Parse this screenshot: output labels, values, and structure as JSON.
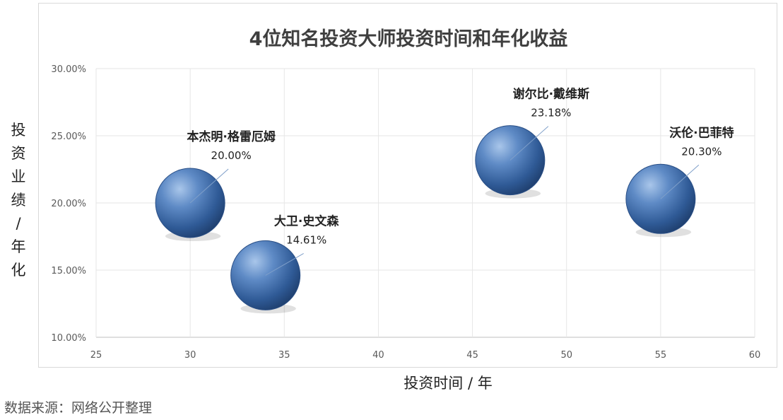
{
  "footer": {
    "source": "数据来源：网络公开整理"
  },
  "chart_data": {
    "type": "scatter",
    "title": "4位知名投资大师投资时间和年化收益",
    "xlabel": "投资时间 / 年",
    "ylabel": "投资业绩 / 年化",
    "xlim": [
      25,
      60
    ],
    "ylim": [
      10,
      30
    ],
    "x_ticks": [
      25,
      30,
      35,
      40,
      45,
      50,
      55,
      60
    ],
    "y_ticks": [
      "10.00%",
      "15.00%",
      "20.00%",
      "25.00%",
      "30.00%"
    ],
    "y_tick_values": [
      10,
      15,
      20,
      25,
      30
    ],
    "grid": true,
    "bubble_color": "#4a74b0",
    "points": [
      {
        "name": "本杰明·格雷厄姆",
        "x": 30,
        "y": 20.0,
        "label": "20.00%"
      },
      {
        "name": "大卫·史文森",
        "x": 34,
        "y": 14.61,
        "label": "14.61%"
      },
      {
        "name": "谢尔比·戴维斯",
        "x": 47,
        "y": 23.18,
        "label": "23.18%"
      },
      {
        "name": "沃伦·巴菲特",
        "x": 55,
        "y": 20.3,
        "label": "20.30%"
      }
    ]
  }
}
